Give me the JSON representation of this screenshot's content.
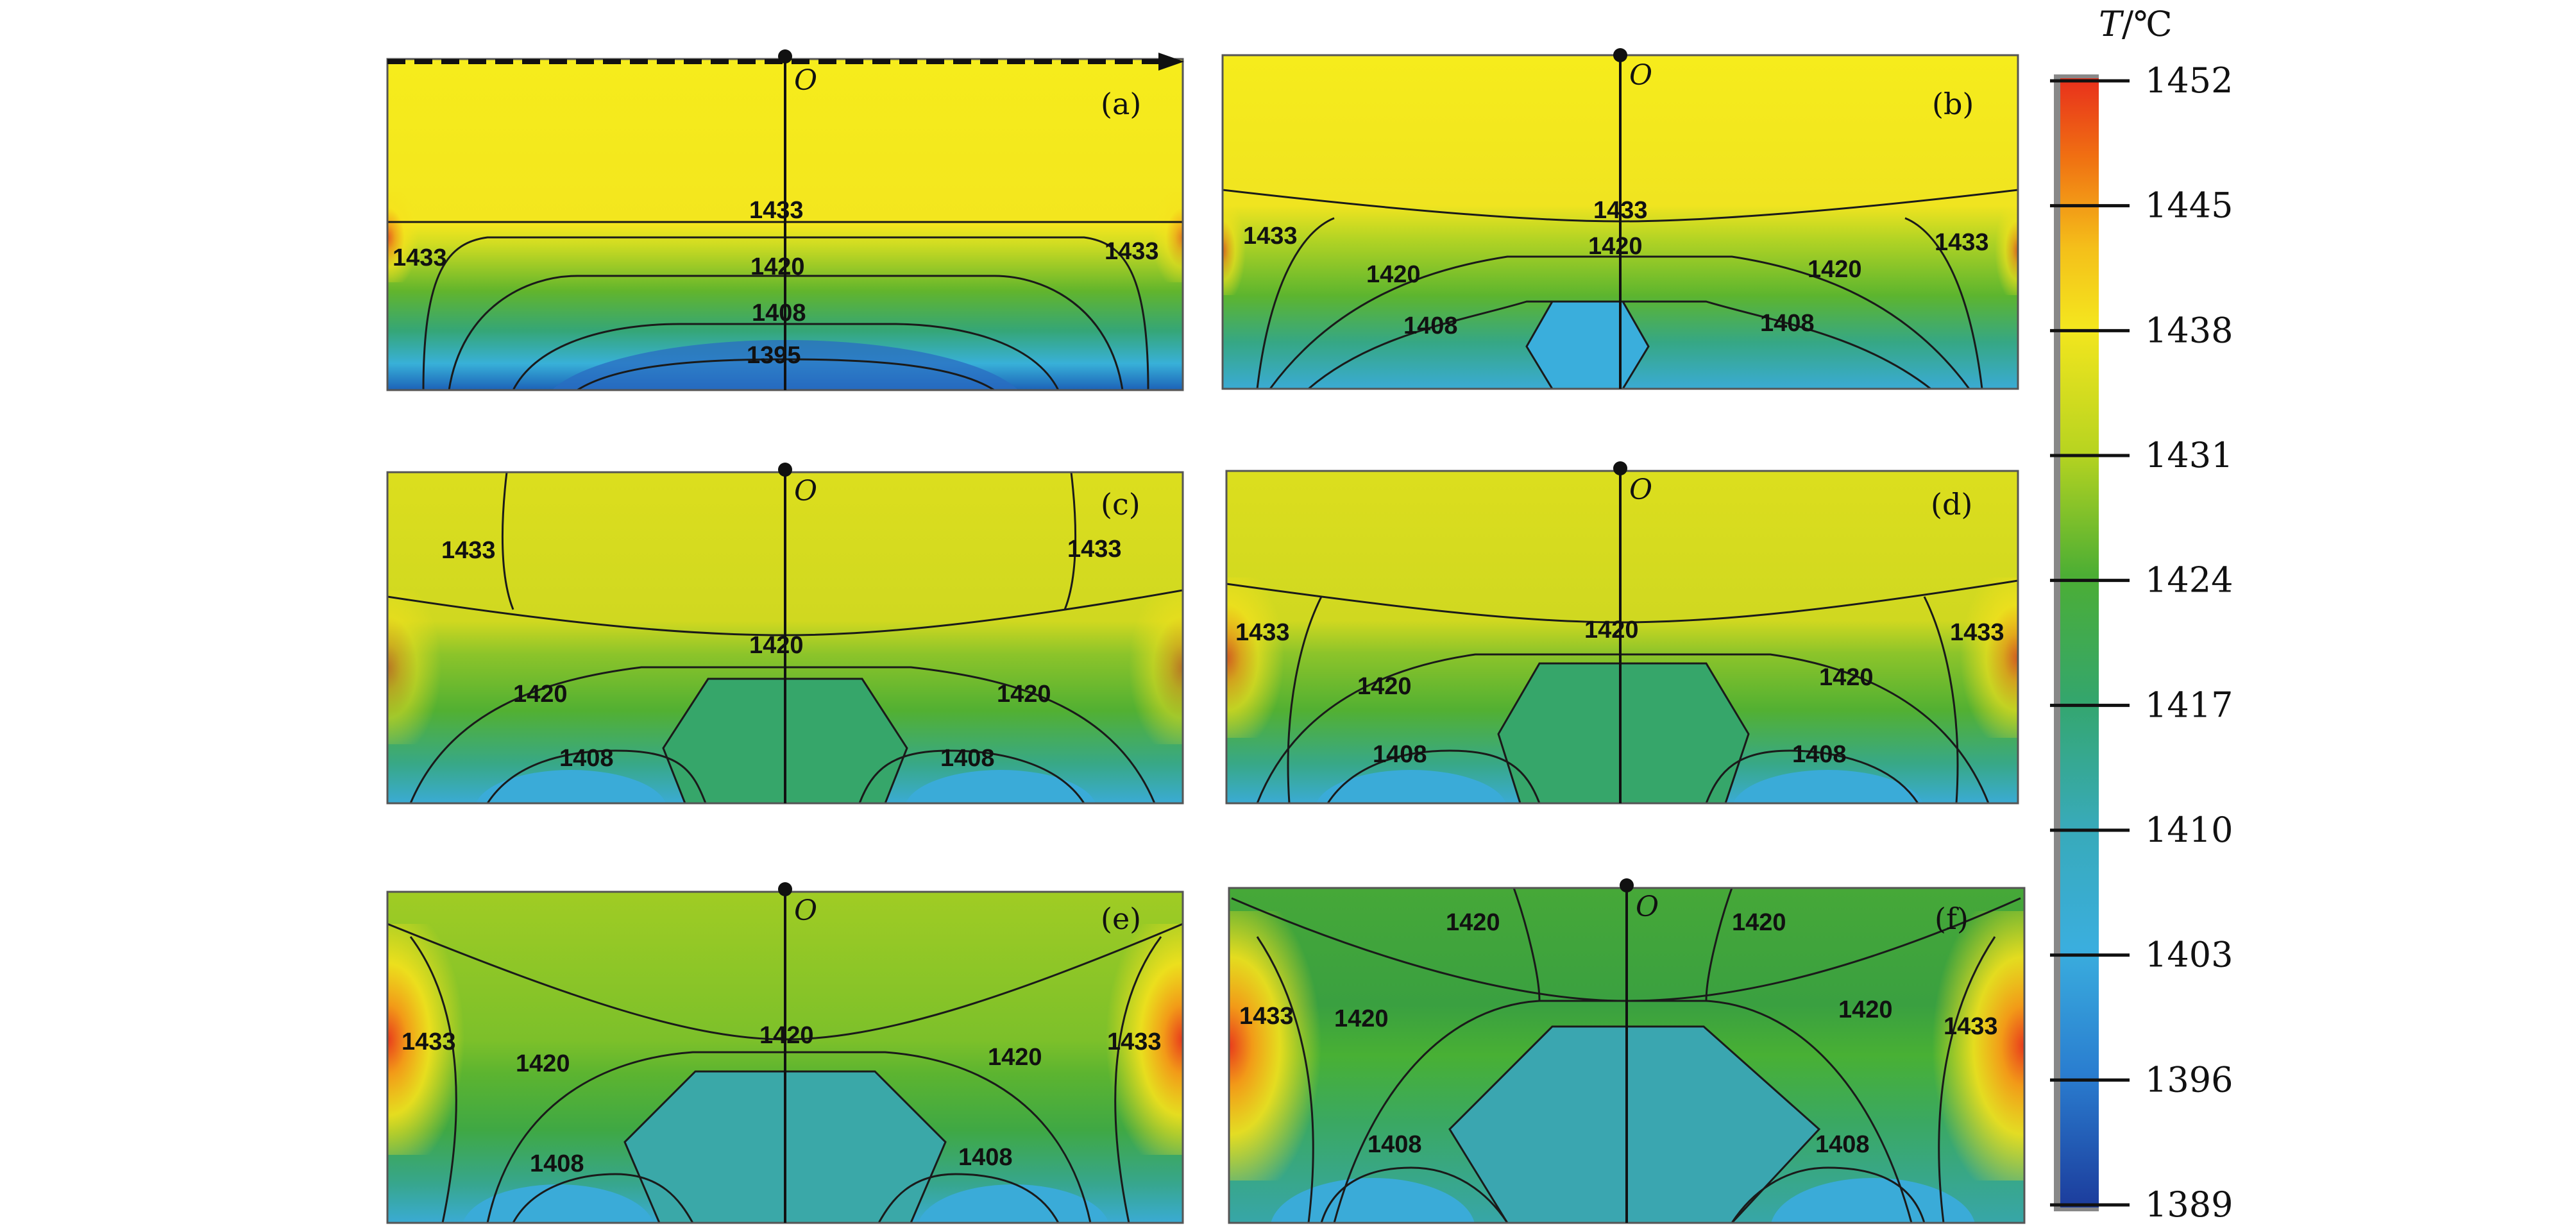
{
  "origin_label": "O",
  "colorbar": {
    "title_var": "T",
    "title_unit": "/℃",
    "ticks": [
      "1452",
      "1445",
      "1438",
      "1431",
      "1424",
      "1417",
      "1410",
      "1403",
      "1396",
      "1389"
    ],
    "colors": [
      "#e8301c",
      "#f07a12",
      "#f4c21a",
      "#f4e81e",
      "#c8d81e",
      "#6cbc2a",
      "#34a040",
      "#3aab9a",
      "#3aa8d8",
      "#2a8ad8",
      "#1f4fae"
    ]
  },
  "panels": [
    {
      "id": "a",
      "label": "(a)",
      "contours": [
        "1433",
        "1433",
        "1433",
        "1420",
        "1408",
        "1395"
      ]
    },
    {
      "id": "b",
      "label": "(b)",
      "contours": [
        "1433",
        "1433",
        "1433",
        "1420",
        "1420",
        "1420",
        "1408",
        "1408"
      ]
    },
    {
      "id": "c",
      "label": "(c)",
      "contours": [
        "1433",
        "1433",
        "1420",
        "1420",
        "1420",
        "1408",
        "1408"
      ]
    },
    {
      "id": "d",
      "label": "(d)",
      "contours": [
        "1420",
        "1433",
        "1433",
        "1420",
        "1420",
        "1408",
        "1408"
      ]
    },
    {
      "id": "e",
      "label": "(e)",
      "contours": [
        "1433",
        "1433",
        "1420",
        "1420",
        "1420",
        "1408",
        "1408"
      ]
    },
    {
      "id": "f",
      "label": "(f)",
      "contours": [
        "1420",
        "1420",
        "1433",
        "1433",
        "1420",
        "1420",
        "1408",
        "1408"
      ]
    }
  ]
}
